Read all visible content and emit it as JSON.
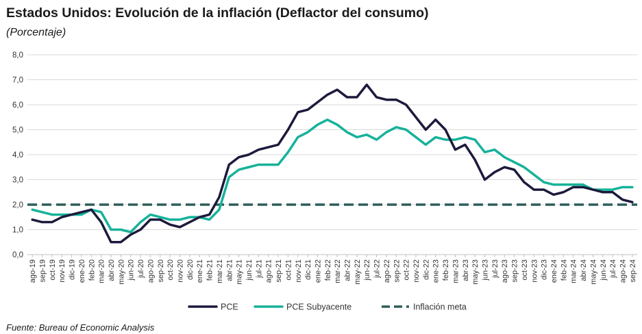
{
  "header": {
    "title": "Estados Unidos: Evolución de la inflación (Deflactor del consumo)",
    "subtitle": "(Porcentaje)"
  },
  "footer": {
    "source": "Fuente: Bureau of Economic Analysis"
  },
  "chart_data": {
    "type": "line",
    "title": "Estados Unidos: Evolución de la inflación (Deflactor del consumo)",
    "subtitle": "(Porcentaje)",
    "xlabel": "",
    "ylabel": "",
    "ylim": [
      0,
      8
    ],
    "yticks": [
      "0,0",
      "1,0",
      "2,0",
      "3,0",
      "4,0",
      "5,0",
      "6,0",
      "7,0",
      "8,0"
    ],
    "grid": "horizontal",
    "legend_position": "bottom",
    "x": [
      "ago-19",
      "sep-19",
      "oct-19",
      "nov-19",
      "dic-19",
      "ene-20",
      "feb-20",
      "mar-20",
      "abr-20",
      "may-20",
      "jun-20",
      "jul-20",
      "ago-20",
      "sep-20",
      "oct-20",
      "nov-20",
      "dic-20",
      "ene-21",
      "feb-21",
      "mar-21",
      "abr-21",
      "may-21",
      "jun-21",
      "jul-21",
      "ago-21",
      "sep-21",
      "oct-21",
      "nov-21",
      "dic-21",
      "ene-22",
      "feb-22",
      "mar-22",
      "abr-22",
      "may-22",
      "jun-22",
      "jul-22",
      "ago-22",
      "sep-22",
      "oct-22",
      "nov-22",
      "dic-22",
      "ene-23",
      "feb-23",
      "mar-23",
      "abr-23",
      "may-23",
      "jun-23",
      "jul-23",
      "ago-23",
      "sep-23",
      "oct-23",
      "nov-23",
      "dic-23",
      "ene-24",
      "feb-24",
      "mar-24",
      "abr-24",
      "may-24",
      "jun-24",
      "jul-24",
      "ago-24",
      "sep-24"
    ],
    "series": [
      {
        "name": "PCE",
        "color": "#1c1a3c",
        "style": "solid",
        "values": [
          1.4,
          1.3,
          1.3,
          1.5,
          1.6,
          1.7,
          1.8,
          1.3,
          0.5,
          0.5,
          0.8,
          1.0,
          1.4,
          1.4,
          1.2,
          1.1,
          1.3,
          1.5,
          1.6,
          2.3,
          3.6,
          3.9,
          4.0,
          4.2,
          4.3,
          4.4,
          5.0,
          5.7,
          5.8,
          6.1,
          6.4,
          6.6,
          6.3,
          6.3,
          6.8,
          6.3,
          6.2,
          6.2,
          6.0,
          5.5,
          5.0,
          5.4,
          5.0,
          4.2,
          4.4,
          3.8,
          3.0,
          3.3,
          3.5,
          3.4,
          2.9,
          2.6,
          2.6,
          2.4,
          2.5,
          2.7,
          2.7,
          2.6,
          2.5,
          2.5,
          2.2,
          2.1
        ]
      },
      {
        "name": "PCE Subyacente",
        "color": "#16b29a",
        "style": "solid",
        "values": [
          1.8,
          1.7,
          1.6,
          1.6,
          1.6,
          1.6,
          1.8,
          1.7,
          1.0,
          1.0,
          0.9,
          1.3,
          1.6,
          1.5,
          1.4,
          1.4,
          1.5,
          1.5,
          1.4,
          1.8,
          3.1,
          3.4,
          3.5,
          3.6,
          3.6,
          3.6,
          4.1,
          4.7,
          4.9,
          5.2,
          5.4,
          5.2,
          4.9,
          4.7,
          4.8,
          4.6,
          4.9,
          5.1,
          5.0,
          4.7,
          4.4,
          4.7,
          4.6,
          4.6,
          4.7,
          4.6,
          4.1,
          4.2,
          3.9,
          3.7,
          3.5,
          3.2,
          2.9,
          2.8,
          2.8,
          2.8,
          2.8,
          2.6,
          2.6,
          2.6,
          2.7,
          2.7
        ]
      },
      {
        "name": "Inflación meta",
        "color": "#2e5d5b",
        "style": "dashed",
        "values": [
          2.0,
          2.0,
          2.0,
          2.0,
          2.0,
          2.0,
          2.0,
          2.0,
          2.0,
          2.0,
          2.0,
          2.0,
          2.0,
          2.0,
          2.0,
          2.0,
          2.0,
          2.0,
          2.0,
          2.0,
          2.0,
          2.0,
          2.0,
          2.0,
          2.0,
          2.0,
          2.0,
          2.0,
          2.0,
          2.0,
          2.0,
          2.0,
          2.0,
          2.0,
          2.0,
          2.0,
          2.0,
          2.0,
          2.0,
          2.0,
          2.0,
          2.0,
          2.0,
          2.0,
          2.0,
          2.0,
          2.0,
          2.0,
          2.0,
          2.0,
          2.0,
          2.0,
          2.0,
          2.0,
          2.0,
          2.0,
          2.0,
          2.0,
          2.0,
          2.0,
          2.0,
          2.0
        ]
      }
    ]
  },
  "style": {
    "gridline_color": "#d9d9d9",
    "axis_color": "#bfbfbf"
  }
}
